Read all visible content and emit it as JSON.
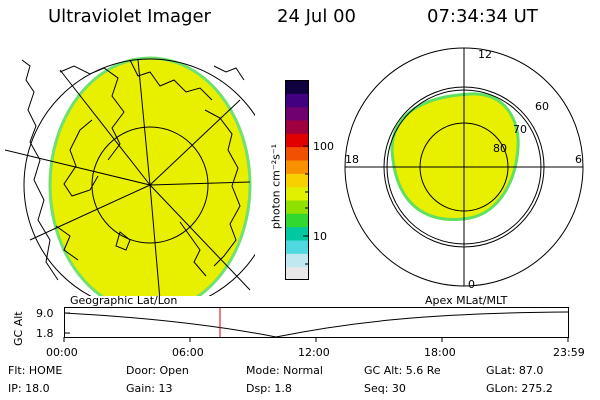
{
  "header": {
    "title": "Ultraviolet Imager",
    "date": "24 Jul 00",
    "time": "07:34:34 UT"
  },
  "colorbar": {
    "unit": "photon cm⁻²s⁻¹",
    "tick_100": "100",
    "tick_10": "10",
    "colors": [
      "#e8e8e8",
      "#c0e8f0",
      "#50d8e0",
      "#00c8a0",
      "#30d830",
      "#90e000",
      "#e0f000",
      "#f8d000",
      "#f89000",
      "#f05000",
      "#e00000",
      "#a00040",
      "#700070",
      "#400080",
      "#100040"
    ]
  },
  "geo_panel": {
    "label": "Geographic Lat/Lon"
  },
  "polar_panel": {
    "label": "Apex MLat/MLT",
    "mlt_top": "12",
    "mlt_left": "18",
    "mlt_right": "6",
    "mlt_bottom": "0",
    "lat_60": "60",
    "lat_70": "70",
    "lat_80": "80"
  },
  "timeline": {
    "ylabel": "GC Alt",
    "y_top": "9.0",
    "y_bottom": "1.8",
    "x_ticks": [
      "00:00",
      "06:00",
      "12:00",
      "18:00",
      "23:59"
    ]
  },
  "info": {
    "flt": "Flt: HOME",
    "door": "Door: Open",
    "mode": "Mode: Normal",
    "gcalt": "GC Alt: 5.6 Re",
    "glat": "GLat:  87.0",
    "ip": "IP: 18.0",
    "gain": "Gain: 13",
    "dsp": "Dsp:    1.8",
    "seq": "Seq: 30",
    "glon": "GLon: 275.2"
  },
  "accent": {
    "aurora": "#e8f000",
    "edge": "#60e060",
    "marker": "#d00000"
  }
}
